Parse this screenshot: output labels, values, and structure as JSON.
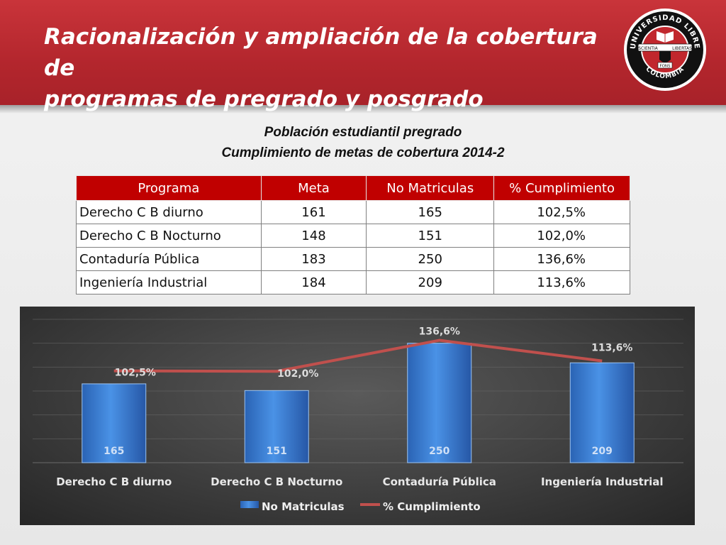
{
  "slide": {
    "title_line1": "Racionalización y ampliación de la cobertura de",
    "title_line2": "programas  de pregrado y posgrado"
  },
  "logo": {
    "top_text": "UNIVERSIDAD LIBRE",
    "bottom_text": "COLOMBIA",
    "ribbon_left": "SCIENTIA",
    "ribbon_right": "LIBERTAS",
    "ribbon_center": "FONS",
    "colors": {
      "red": "#c1272d",
      "black": "#111111",
      "gold": "#c9a23f"
    }
  },
  "table": {
    "heading_line1": "Población estudiantil pregrado",
    "heading_line2": "Cumplimiento de metas de cobertura 2014-2",
    "headers": [
      "Programa",
      "Meta",
      "No Matriculas",
      "% Cumplimiento"
    ],
    "rows": [
      [
        "Derecho C B diurno",
        "161",
        "165",
        "102,5%"
      ],
      [
        "Derecho C B Nocturno",
        "148",
        "151",
        "102,0%"
      ],
      [
        "Contaduría Pública",
        "183",
        "250",
        "136,6%"
      ],
      [
        "Ingeniería Industrial",
        "184",
        "209",
        "113,6%"
      ]
    ],
    "header_color": "#c00000"
  },
  "chart_data": {
    "type": "bar",
    "categories": [
      "Derecho C B diurno",
      "Derecho C B Nocturno",
      "Contaduría Pública",
      "Ingeniería Industrial"
    ],
    "series": [
      {
        "name": "No Matriculas",
        "type": "bar",
        "values": [
          165,
          151,
          250,
          209
        ],
        "labels": [
          "165",
          "151",
          "250",
          "209"
        ],
        "color": "#3a7fd5"
      },
      {
        "name": "% Cumplimiento",
        "type": "line",
        "values": [
          102.5,
          102.0,
          136.6,
          113.6
        ],
        "labels": [
          "102,5%",
          "102,0%",
          "136,6%",
          "113,6%"
        ],
        "color": "#c0504d"
      }
    ],
    "bar_ylim": [
      0,
      300
    ],
    "line_ylim": [
      0,
      160
    ],
    "grid": true,
    "legend_position": "bottom",
    "title": "",
    "xlabel": "",
    "ylabel": ""
  }
}
